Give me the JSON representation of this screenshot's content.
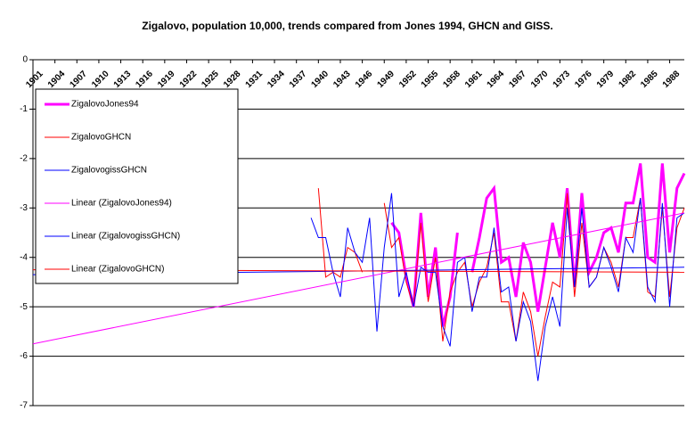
{
  "chart_data": {
    "type": "line",
    "title": "Zigalovo, population 10,000,  trends compared from Jones 1994, GHCN and GISS.",
    "xlim": [
      1901,
      1990
    ],
    "xticks": [
      1901,
      1904,
      1907,
      1910,
      1913,
      1916,
      1919,
      1922,
      1925,
      1928,
      1931,
      1934,
      1937,
      1940,
      1943,
      1946,
      1949,
      1952,
      1955,
      1958,
      1961,
      1964,
      1967,
      1970,
      1973,
      1976,
      1979,
      1982,
      1985,
      1988
    ],
    "ylim": [
      -7,
      0
    ],
    "yticks": [
      -7,
      -6,
      -5,
      -4,
      -3,
      -2,
      -1,
      0
    ],
    "grid": true,
    "legend": "top-left",
    "series": [
      {
        "name": "ZigalovoJones94",
        "color": "#ff00ff",
        "width": 3,
        "x": [
          1950,
          1951,
          1952,
          1953,
          1954,
          1955,
          1956,
          1957,
          1958,
          1959,
          1960,
          1961,
          1962,
          1963,
          1964,
          1965,
          1966,
          1967,
          1968,
          1969,
          1970,
          1971,
          1972,
          1973,
          1974,
          1975,
          1976,
          1977,
          1978,
          1979,
          1980,
          1981,
          1982,
          1983,
          1984,
          1985,
          1986,
          1987,
          1988,
          1989,
          1990
        ],
        "values": [
          -3.3,
          -3.5,
          -4.4,
          -5.0,
          -3.1,
          -4.8,
          -3.8,
          -5.4,
          -4.8,
          -3.5,
          null,
          -4.3,
          -3.6,
          -2.8,
          -2.6,
          -4.1,
          -4.0,
          -4.8,
          -3.7,
          -4.1,
          -5.1,
          -4.2,
          -3.3,
          -4.0,
          -2.6,
          -4.6,
          -2.7,
          -4.3,
          -4.0,
          -3.5,
          -3.4,
          -3.9,
          -2.9,
          -2.9,
          -2.1,
          -4.0,
          -4.1,
          -2.1,
          -3.9,
          -2.6,
          -2.3
        ]
      },
      {
        "name": "ZigalovoGHCN",
        "color": "#ff0000",
        "width": 1,
        "x": [
          1940,
          1941,
          1942,
          1943,
          1944,
          1945,
          1946,
          1947,
          1948,
          1949,
          1950,
          1951,
          1952,
          1953,
          1954,
          1955,
          1956,
          1957,
          1958,
          1959,
          1960,
          1961,
          1962,
          1963,
          1964,
          1965,
          1966,
          1967,
          1968,
          1969,
          1970,
          1971,
          1972,
          1973,
          1974,
          1975,
          1976,
          1977,
          1978,
          1979,
          1980,
          1981,
          1982,
          1983,
          1984,
          1985,
          1986,
          1987,
          1988,
          1989,
          1990
        ],
        "values": [
          -2.6,
          -4.4,
          -4.3,
          -4.4,
          -3.8,
          -3.9,
          -4.3,
          null,
          null,
          -2.9,
          -3.8,
          -3.6,
          -4.5,
          -5.0,
          -3.3,
          -4.9,
          -4.0,
          -5.7,
          -4.7,
          -4.3,
          -4.1,
          -5.0,
          -4.5,
          -4.2,
          -3.5,
          -4.9,
          -4.9,
          -5.7,
          -4.7,
          -5.1,
          -6.0,
          -5.2,
          -4.5,
          -4.6,
          -2.7,
          -4.8,
          -3.3,
          -4.6,
          -4.4,
          -3.8,
          -4.1,
          -4.6,
          -3.6,
          -3.6,
          -2.8,
          -4.7,
          -4.8,
          -3.0,
          -4.8,
          -3.4,
          -3.0
        ]
      },
      {
        "name": "ZigalovogissGHCN",
        "color": "#0000ff",
        "width": 1,
        "x": [
          1939,
          1940,
          1941,
          1942,
          1943,
          1944,
          1945,
          1946,
          1947,
          1948,
          1949,
          1950,
          1951,
          1952,
          1953,
          1954,
          1955,
          1956,
          1957,
          1958,
          1959,
          1960,
          1961,
          1962,
          1963,
          1964,
          1965,
          1966,
          1967,
          1968,
          1969,
          1970,
          1971,
          1972,
          1973,
          1974,
          1975,
          1976,
          1977,
          1978,
          1979,
          1980,
          1981,
          1982,
          1983,
          1984,
          1985,
          1986,
          1987,
          1988,
          1989,
          1990
        ],
        "values": [
          -3.2,
          -3.6,
          -3.6,
          -4.3,
          -4.8,
          -3.4,
          -3.9,
          -4.1,
          -3.2,
          -5.5,
          -3.8,
          -2.7,
          -4.8,
          -4.3,
          -5.0,
          -4.2,
          -4.3,
          -4.3,
          -5.4,
          -5.8,
          -4.1,
          -4.0,
          -5.1,
          -4.4,
          -4.4,
          -3.4,
          -4.7,
          -4.6,
          -5.7,
          -4.9,
          -5.3,
          -6.5,
          -5.4,
          -4.8,
          -5.4,
          -3.0,
          -4.6,
          -3.0,
          -4.6,
          -4.4,
          -3.8,
          -4.2,
          -4.7,
          -3.6,
          -3.9,
          -2.8,
          -4.6,
          -4.9,
          -2.9,
          -5.0,
          -3.2,
          -3.1
        ]
      },
      {
        "name": "Linear (ZigalovoJones94)",
        "color": "#ff00ff",
        "width": 1,
        "x": [
          1901,
          1990
        ],
        "values": [
          -5.75,
          -3.1
        ]
      },
      {
        "name": "Linear (ZigalovogissGHCN)",
        "color": "#0000ff",
        "width": 1,
        "x": [
          1901,
          1990
        ],
        "values": [
          -4.35,
          -4.2
        ]
      },
      {
        "name": "Linear (ZigalovoGHCN)",
        "color": "#ff0000",
        "width": 1,
        "x": [
          1901,
          1990
        ],
        "values": [
          -4.25,
          -4.3
        ]
      }
    ]
  }
}
